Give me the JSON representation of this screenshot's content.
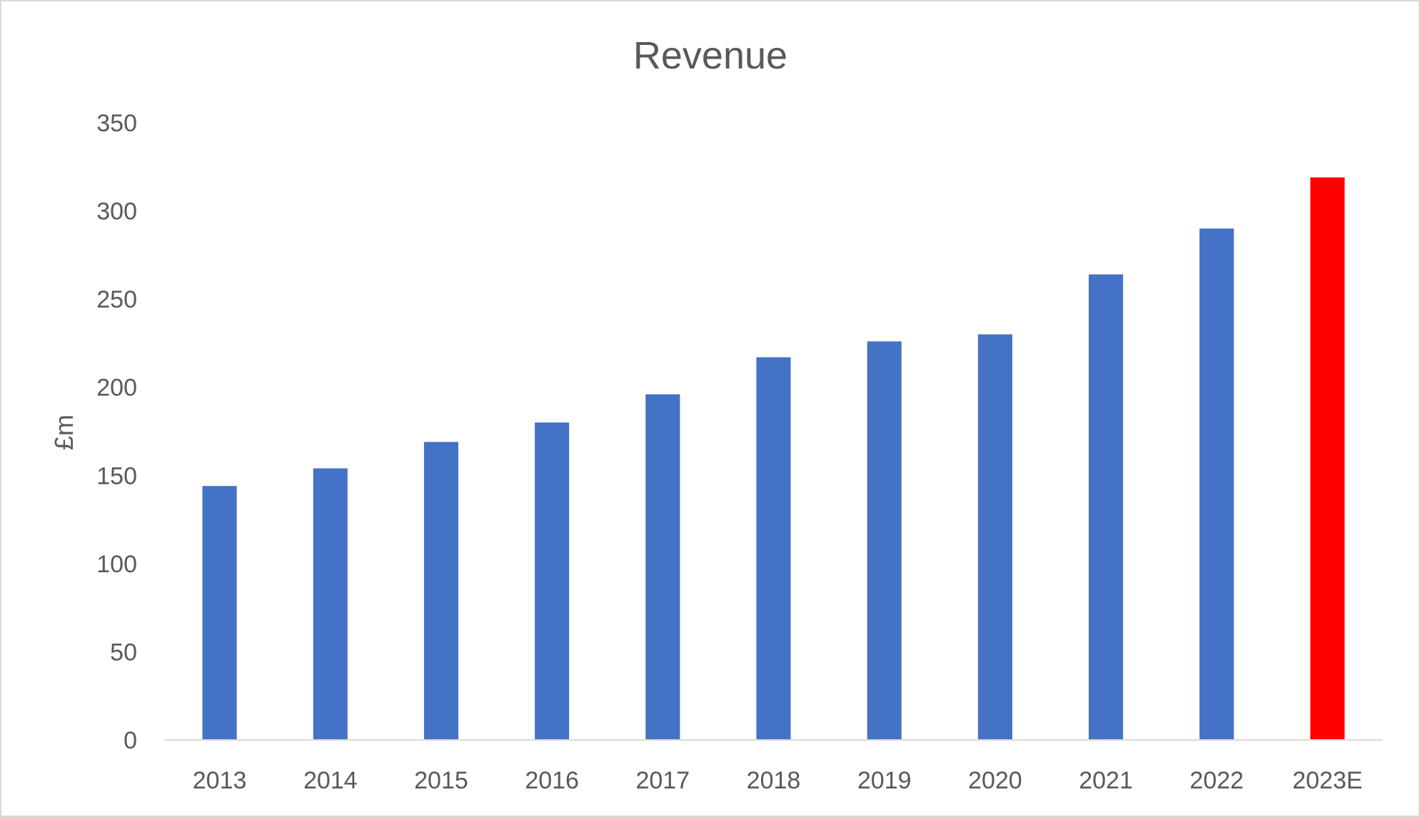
{
  "chart_data": {
    "type": "bar",
    "title": "Revenue",
    "xlabel": "",
    "ylabel": "£m",
    "categories": [
      "2013",
      "2014",
      "2015",
      "2016",
      "2017",
      "2018",
      "2019",
      "2020",
      "2021",
      "2022",
      "2023E"
    ],
    "values": [
      144,
      154,
      169,
      180,
      196,
      217,
      226,
      230,
      264,
      290,
      319
    ],
    "bar_colors": [
      "#4472C4",
      "#4472C4",
      "#4472C4",
      "#4472C4",
      "#4472C4",
      "#4472C4",
      "#4472C4",
      "#4472C4",
      "#4472C4",
      "#4472C4",
      "#FF0000"
    ],
    "ylim": [
      0,
      350
    ],
    "yticks": [
      0,
      50,
      100,
      150,
      200,
      250,
      300,
      350
    ],
    "grid": false,
    "legend": "none"
  },
  "colors": {
    "actual": "#4472C4",
    "estimate": "#FF0000",
    "text": "#595959",
    "axis": "#d9d9d9"
  }
}
